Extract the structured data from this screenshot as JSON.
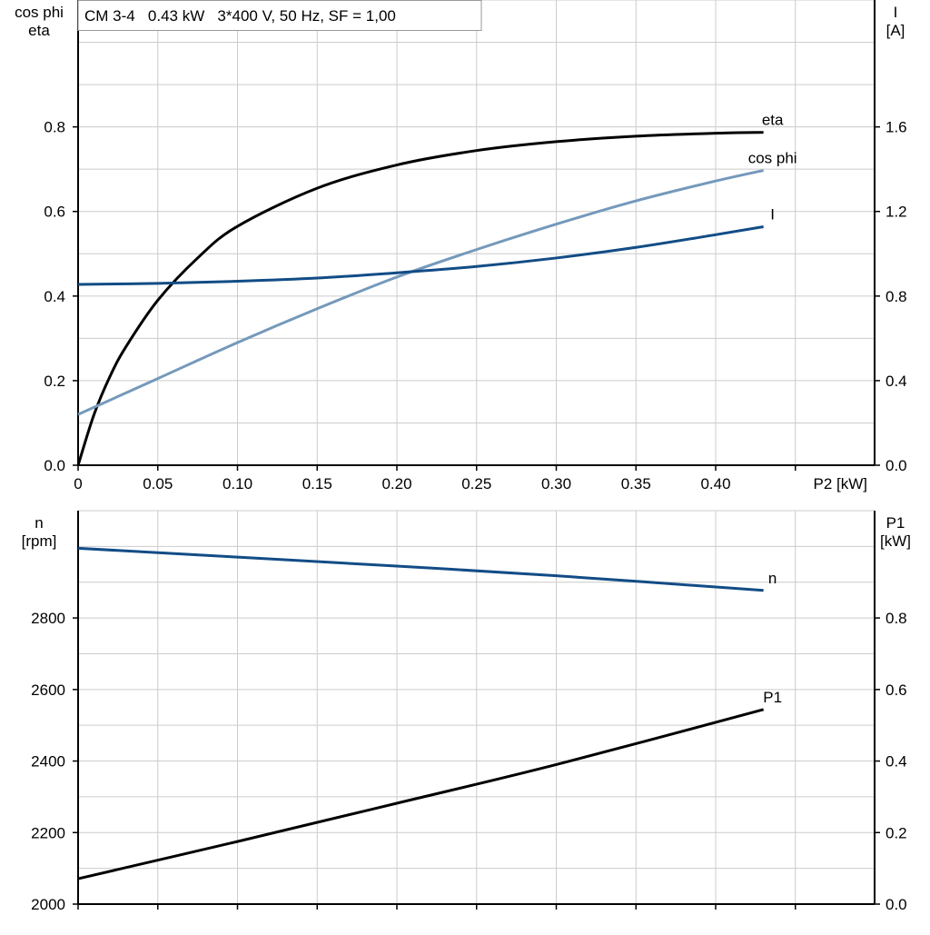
{
  "header": {
    "title": "CM 3-4   0.43 kW   3*400 V, 50 Hz, SF = 1,00"
  },
  "chart_data": [
    {
      "type": "line",
      "xlabel": "P2 [kW]",
      "ylabel_left": [
        "cos phi",
        "eta"
      ],
      "ylabel_right": [
        "I",
        "[A]"
      ],
      "xlim": [
        0,
        0.5
      ],
      "ylim_left": [
        0,
        1.1
      ],
      "ylim_right": [
        0,
        2.2
      ],
      "x_ticks": [
        "0",
        "0.05",
        "0.10",
        "0.15",
        "0.20",
        "0.25",
        "0.30",
        "0.35",
        "0.40"
      ],
      "x_tick_values": [
        0,
        0.05,
        0.1,
        0.15,
        0.2,
        0.25,
        0.3,
        0.35,
        0.4
      ],
      "y_ticks_left": [
        "0.0",
        "0.2",
        "0.4",
        "0.6",
        "0.8"
      ],
      "y_tick_values_left": [
        0,
        0.2,
        0.4,
        0.6,
        0.8
      ],
      "y_ticks_right": [
        "0.0",
        "0.4",
        "0.8",
        "1.2",
        "1.6"
      ],
      "y_tick_values_right": [
        0,
        0.4,
        0.8,
        1.2,
        1.6
      ],
      "grid": true,
      "series": [
        {
          "name": "eta",
          "axis": "left",
          "color": "#000000",
          "x": [
            0,
            0.01,
            0.02,
            0.03,
            0.05,
            0.075,
            0.1,
            0.15,
            0.2,
            0.25,
            0.3,
            0.35,
            0.4,
            0.43
          ],
          "y": [
            0,
            0.12,
            0.21,
            0.28,
            0.39,
            0.49,
            0.565,
            0.655,
            0.71,
            0.744,
            0.765,
            0.778,
            0.785,
            0.787
          ]
        },
        {
          "name": "cos phi",
          "axis": "left",
          "color": "#7499bb",
          "x": [
            0,
            0.05,
            0.1,
            0.15,
            0.2,
            0.25,
            0.3,
            0.35,
            0.4,
            0.43
          ],
          "y": [
            0.12,
            0.205,
            0.29,
            0.37,
            0.445,
            0.51,
            0.57,
            0.625,
            0.672,
            0.697
          ]
        },
        {
          "name": "I",
          "axis": "right",
          "color": "#124c86",
          "x": [
            0,
            0.05,
            0.1,
            0.15,
            0.2,
            0.25,
            0.3,
            0.35,
            0.4,
            0.43
          ],
          "y": [
            0.855,
            0.86,
            0.87,
            0.885,
            0.91,
            0.94,
            0.98,
            1.03,
            1.09,
            1.128
          ]
        }
      ]
    },
    {
      "type": "line",
      "ylabel_left": [
        "n",
        "[rpm]"
      ],
      "ylabel_right": [
        "P1",
        "[kW]"
      ],
      "xlim": [
        0,
        0.5
      ],
      "ylim_left": [
        2000,
        3100
      ],
      "ylim_right": [
        0,
        1.1
      ],
      "x_tick_values": [
        0,
        0.05,
        0.1,
        0.15,
        0.2,
        0.25,
        0.3,
        0.35,
        0.4,
        0.45
      ],
      "y_ticks_left": [
        "2000",
        "2200",
        "2400",
        "2600",
        "2800"
      ],
      "y_tick_values_left": [
        2000,
        2200,
        2400,
        2600,
        2800
      ],
      "y_ticks_right": [
        "0.0",
        "0.2",
        "0.4",
        "0.6",
        "0.8"
      ],
      "y_tick_values_right": [
        0,
        0.2,
        0.4,
        0.6,
        0.8
      ],
      "grid": true,
      "series": [
        {
          "name": "n",
          "axis": "left",
          "color": "#124c86",
          "x": [
            0,
            0.1,
            0.2,
            0.3,
            0.43
          ],
          "y": [
            2995,
            2970,
            2945,
            2918,
            2877
          ]
        },
        {
          "name": "P1",
          "axis": "right",
          "color": "#000000",
          "x": [
            0,
            0.1,
            0.2,
            0.3,
            0.43
          ],
          "y": [
            0.071,
            0.175,
            0.282,
            0.39,
            0.544
          ]
        }
      ]
    }
  ]
}
